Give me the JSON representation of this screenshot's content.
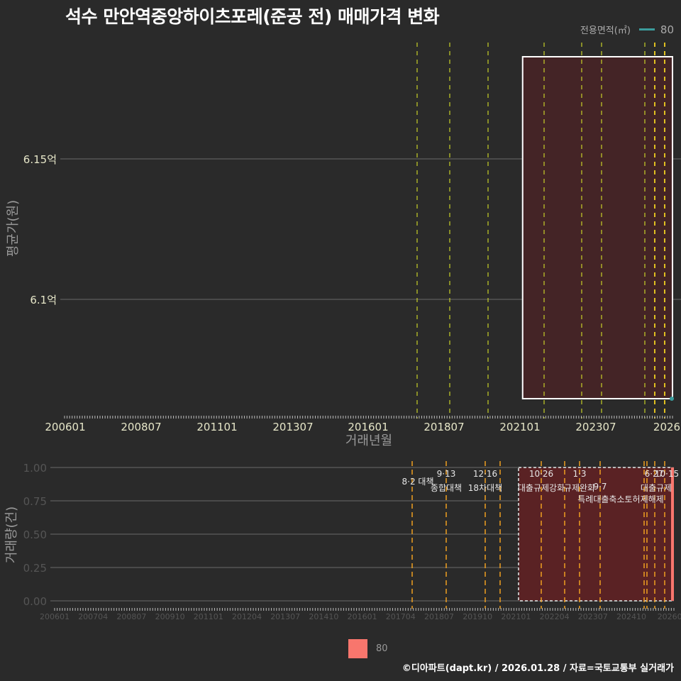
{
  "title": "석수 만안역중앙하이츠포레(준공 전) 매매가격 변화",
  "legend_top": {
    "label": "전용면적(㎡)",
    "value": "80",
    "color": "#3b9c9c"
  },
  "legend_bottom": {
    "value": "80",
    "color": "#f8766d"
  },
  "footer": "©디아파트(dapt.kr) / 2026.01.28 / 자료=국토교통부 실거래가",
  "chart_data": [
    {
      "type": "line",
      "title": "석수 만안역중앙하이츠포레(준공 전) 매매가격 변화",
      "xlabel": "거래년월",
      "ylabel": "평균가(원)",
      "x_tick_labels": [
        "200601",
        "200807",
        "201101",
        "201307",
        "201601",
        "201807",
        "202101",
        "202307",
        "2026"
      ],
      "y_tick_labels": [
        "6.1억",
        "6.15억"
      ],
      "y_ticks": [
        610000000,
        615000000
      ],
      "grid": true,
      "series": [
        {
          "name": "80",
          "x": [
            "202601"
          ],
          "values": [
            609500000
          ]
        }
      ],
      "highlight_rect": {
        "from": "202101",
        "to": "202601"
      },
      "policy_lines": [
        "201708",
        "201809",
        "201912",
        "202010",
        "202201",
        "202301",
        "202309",
        "202506",
        "202510",
        "202512"
      ]
    },
    {
      "type": "bar",
      "xlabel": "",
      "ylabel": "거래량(건)",
      "x_tick_labels": [
        "200601",
        "200704",
        "200807",
        "200910",
        "201101",
        "201204",
        "201307",
        "201410",
        "201601",
        "201704",
        "201807",
        "201910",
        "202101",
        "202204",
        "202307",
        "202410",
        "20260"
      ],
      "y_tick_labels": [
        "0.00",
        "0.25",
        "0.50",
        "0.75",
        "1.00"
      ],
      "ylim": [
        0,
        1
      ],
      "series": [
        {
          "name": "80",
          "categories": [
            "202601"
          ],
          "values": [
            1
          ]
        }
      ],
      "annotations": [
        {
          "date": "8·2 대책",
          "label": ""
        },
        {
          "date": "9·13",
          "label": "종합대책"
        },
        {
          "date": "12·16",
          "label": "18차대책"
        },
        {
          "date": "10·26",
          "label": "대출규제강화"
        },
        {
          "date": "1·3",
          "label": "규제완화"
        },
        {
          "date": "9·7",
          "label": "특례대출축소토허제해제"
        },
        {
          "date": "6·27",
          "label": "대출규제"
        },
        {
          "date": "10·15",
          "label": ""
        }
      ]
    }
  ]
}
